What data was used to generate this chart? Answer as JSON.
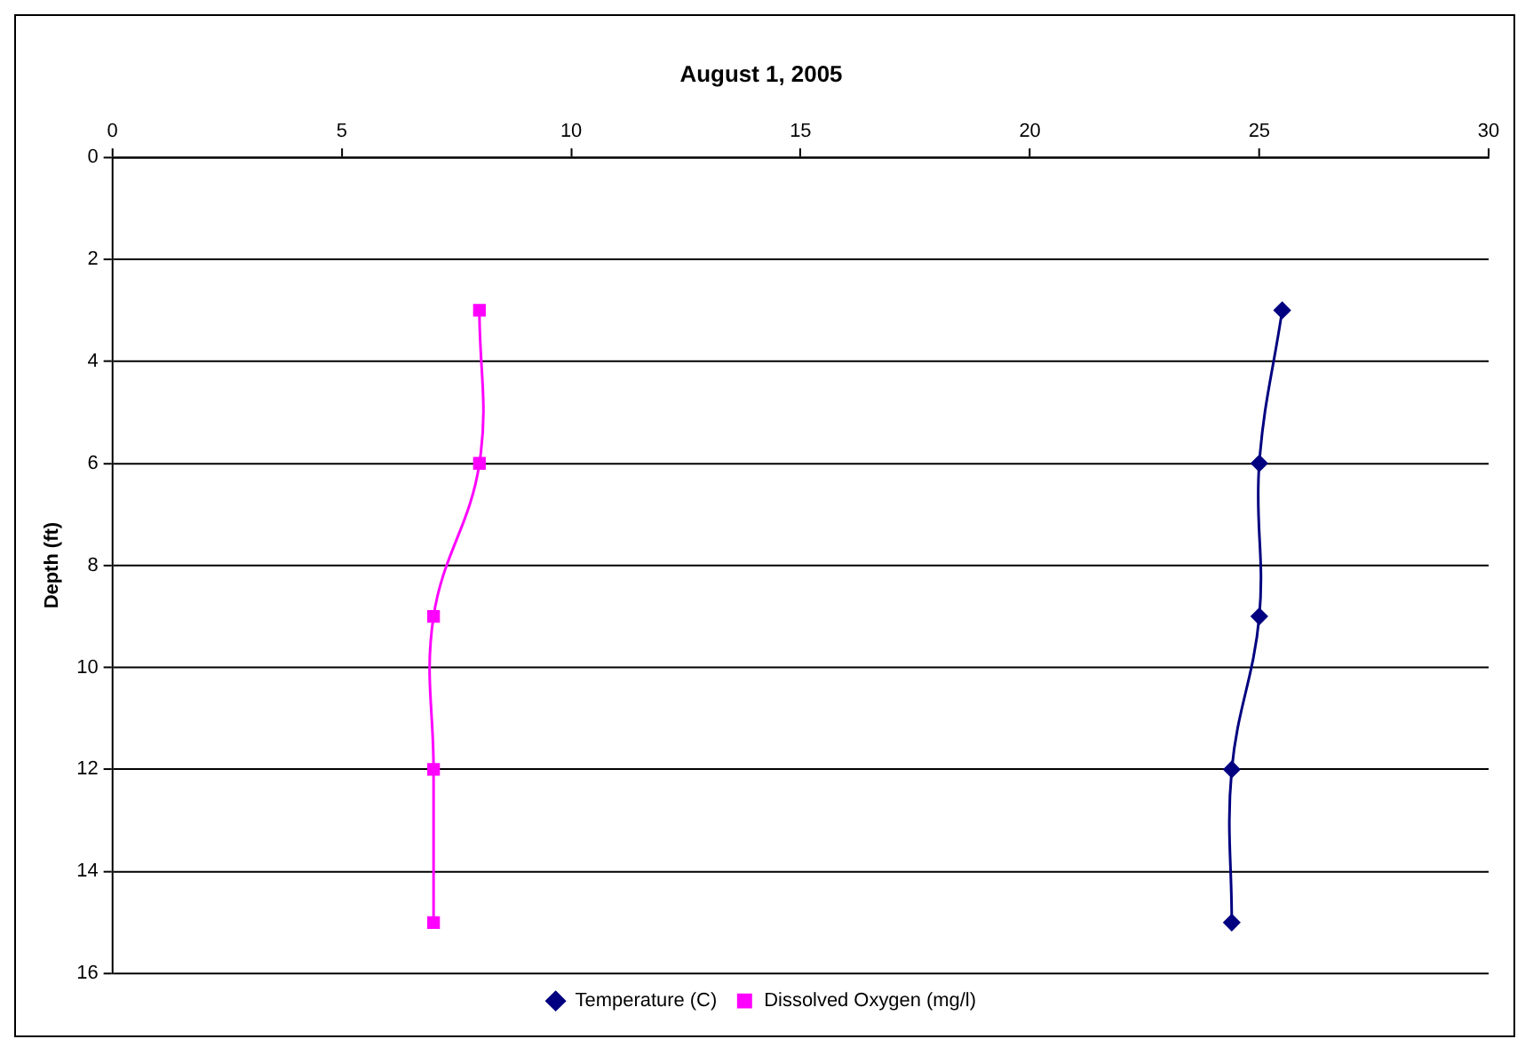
{
  "chart_data": {
    "type": "line",
    "title": "August 1, 2005",
    "ylabel": "Depth (ft)",
    "xlim": [
      0,
      30
    ],
    "xticks": [
      0,
      5,
      10,
      15,
      20,
      25,
      30
    ],
    "ylim": [
      16,
      0
    ],
    "yticks": [
      0,
      2,
      4,
      6,
      8,
      10,
      12,
      14,
      16
    ],
    "grid": "y",
    "legend": "bottom",
    "line_style": "solid",
    "series": [
      {
        "name": "Temperature (C)",
        "color": "#000080",
        "marker": "diamond",
        "x": [
          25.5,
          25.0,
          25.0,
          24.4,
          24.4
        ],
        "values": [
          3,
          6,
          9,
          12,
          15
        ]
      },
      {
        "name": "Dissolved Oxygen (mg/l)",
        "color": "#ff00ff",
        "marker": "square",
        "x": [
          8.0,
          8.0,
          7.0,
          7.0,
          7.0
        ],
        "values": [
          3,
          6,
          9,
          12,
          15
        ]
      }
    ]
  }
}
